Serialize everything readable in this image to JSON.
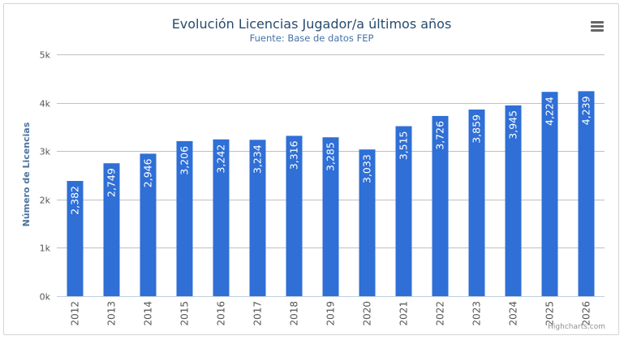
{
  "chart_data": {
    "type": "bar",
    "title": "Evolución Licencias Jugador/a últimos años",
    "subtitle": "Fuente: Base de datos FEP",
    "ylabel": "Número de Licencias",
    "ylim": [
      0,
      5000
    ],
    "yticks": [
      "0k",
      "1k",
      "2k",
      "3k",
      "4k",
      "5k"
    ],
    "categories": [
      "2012",
      "2013",
      "2014",
      "2015",
      "2016",
      "2017",
      "2018",
      "2019",
      "2020",
      "2021",
      "2022",
      "2023",
      "2024",
      "2025",
      "2026"
    ],
    "values": [
      2382,
      2749,
      2946,
      3206,
      3242,
      3234,
      3316,
      3285,
      3033,
      3515,
      3726,
      3859,
      3945,
      4224,
      4239
    ],
    "data_labels": [
      "2,382",
      "2,749",
      "2,946",
      "3,206",
      "3,242",
      "3,234",
      "3,316",
      "3,285",
      "3,033",
      "3,515",
      "3,726",
      "3,859",
      "3,945",
      "4,224",
      "4,239"
    ],
    "bar_color": "#2f6fd6",
    "grid": true,
    "legend": "none"
  },
  "credits": "Highcharts.com",
  "menu_icon": "hamburger-menu-icon"
}
